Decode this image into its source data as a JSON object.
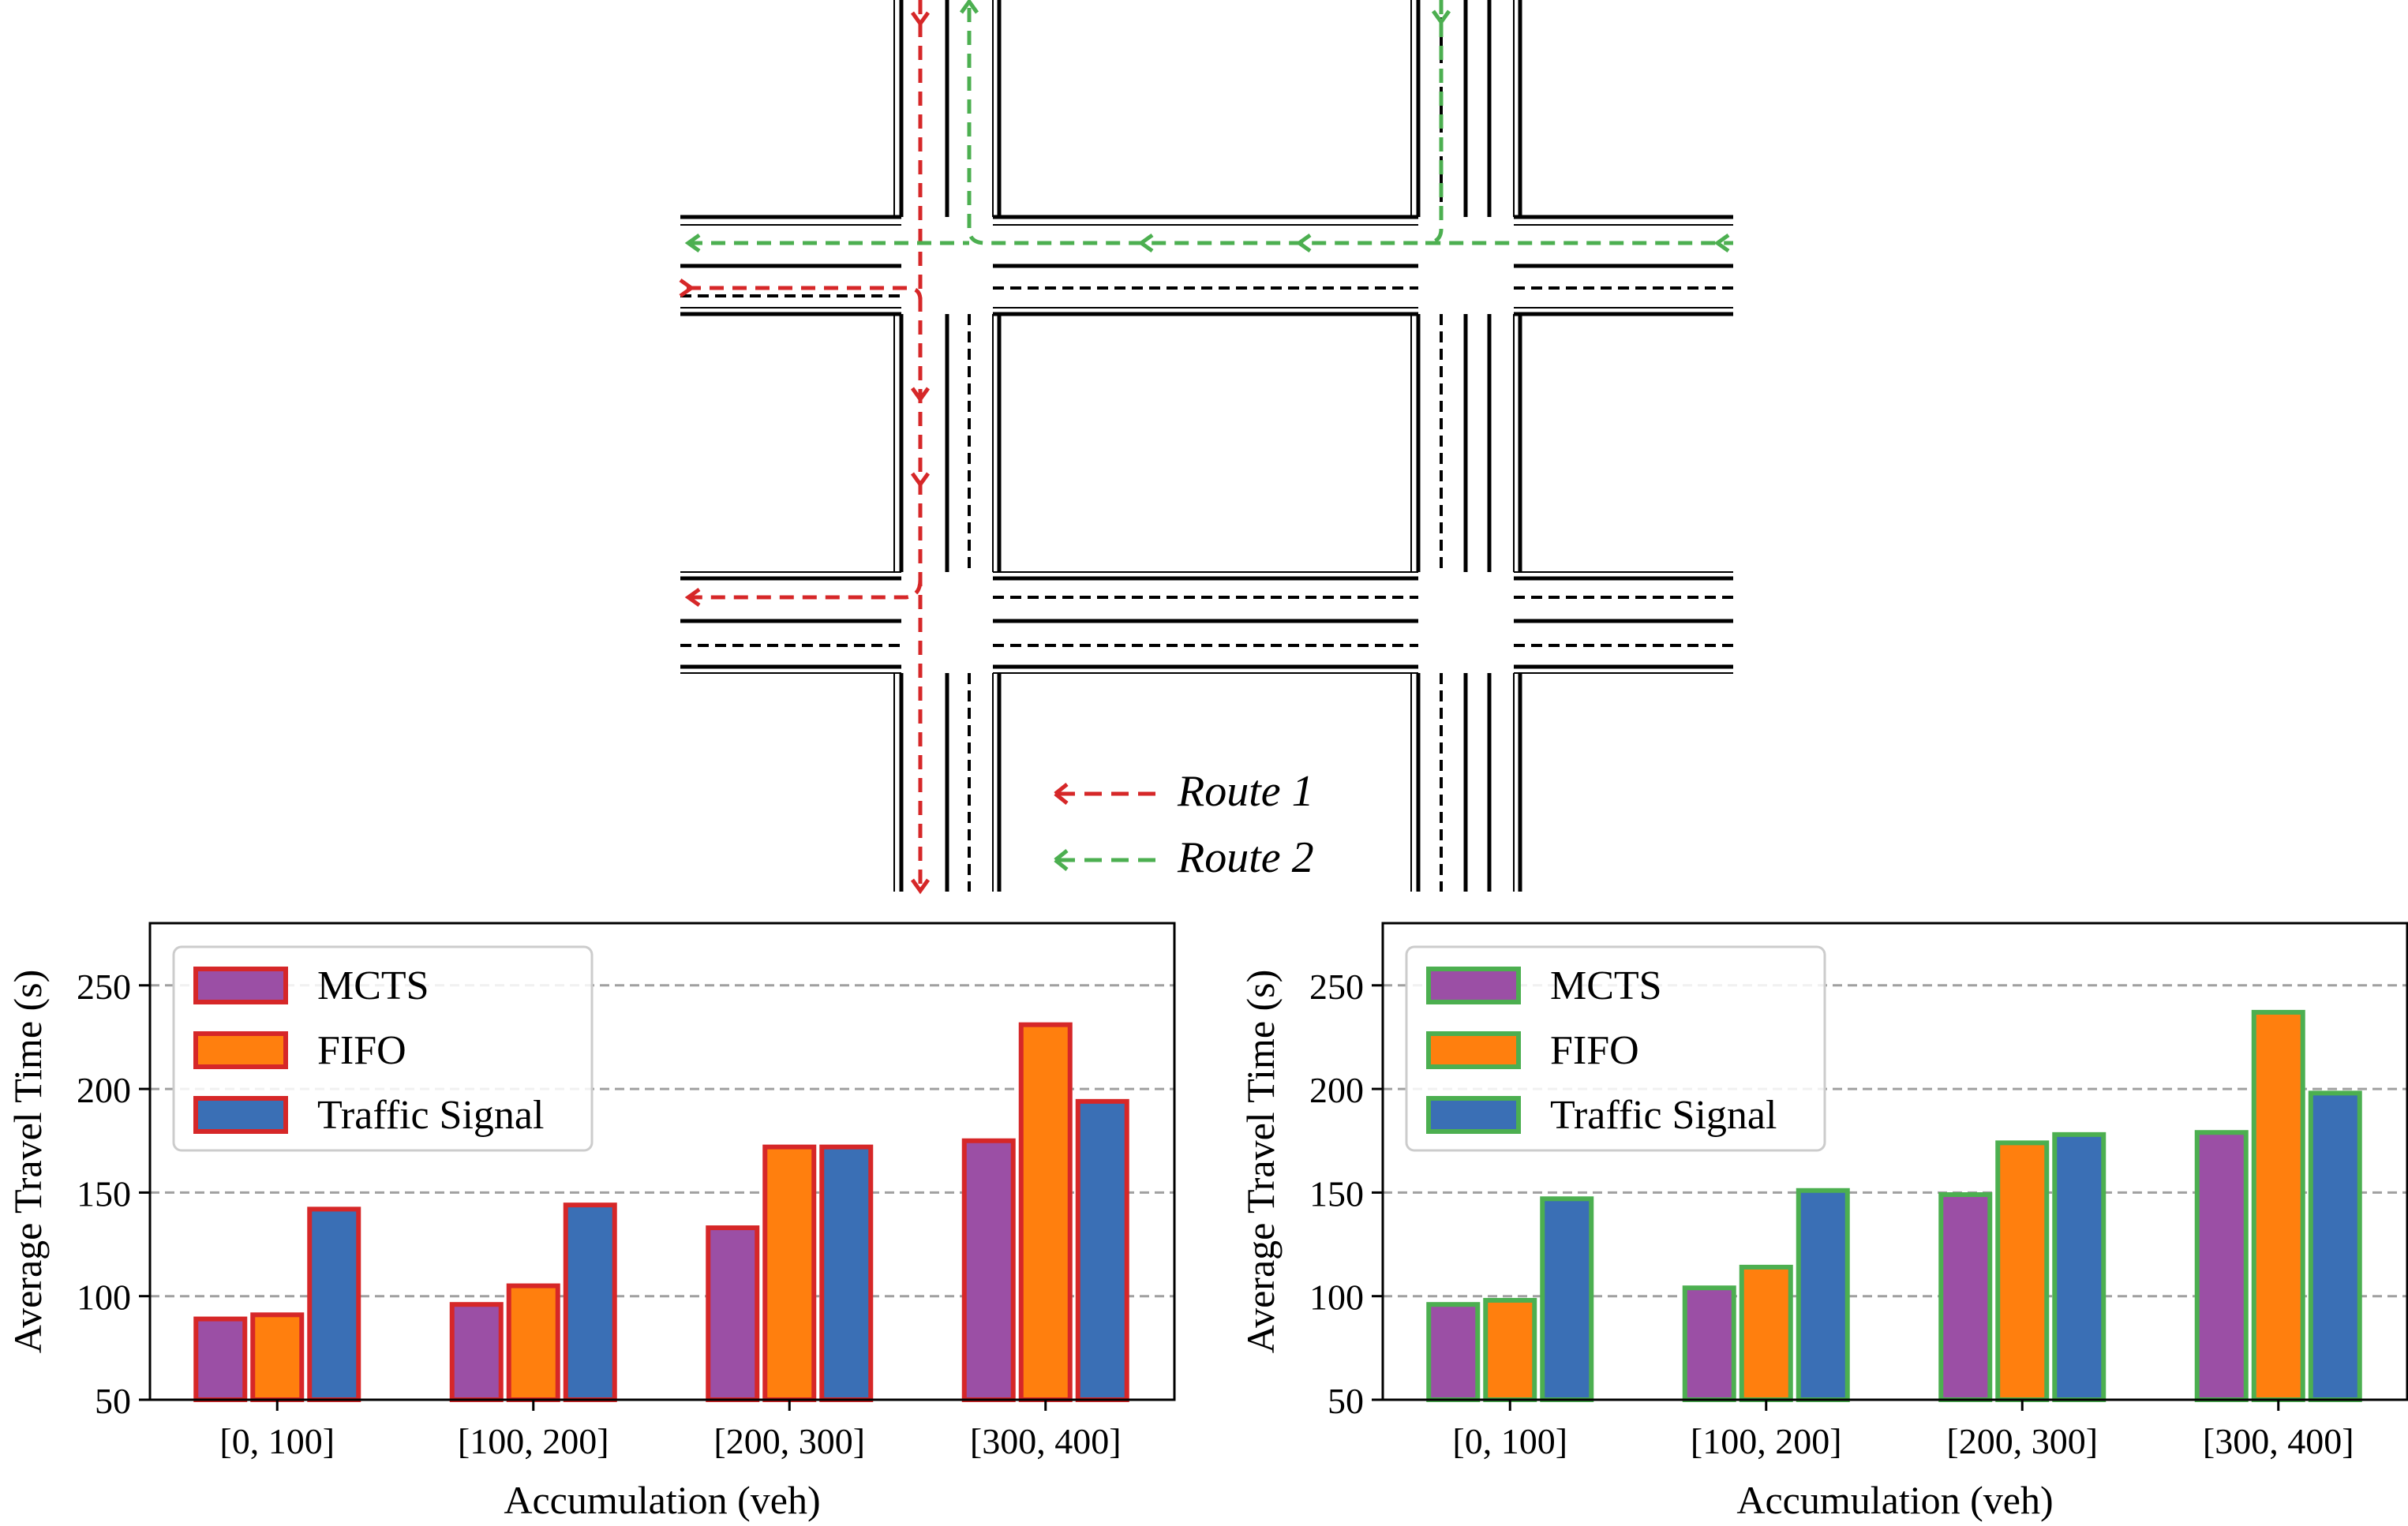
{
  "colors": {
    "route1": "#d62728",
    "route2": "#4caf50",
    "mcts": "#9b4fa5",
    "fifo": "#ff7f0e",
    "traffic_signal": "#3a6fb5",
    "grid": "#a0a0a0"
  },
  "legend_routes": [
    {
      "label": "Route 1",
      "color": "#d62728"
    },
    {
      "label": "Route 2",
      "color": "#4caf50"
    }
  ],
  "chart_data": [
    {
      "type": "bar",
      "xlabel": "Accumulation (veh)",
      "ylabel": "Average Travel Time (s)",
      "categories": [
        "[0, 100]",
        "[100, 200]",
        "[200, 300]",
        "[300, 400]"
      ],
      "ylim": [
        50,
        280
      ],
      "yticks": [
        50,
        100,
        150,
        200,
        250
      ],
      "grid": true,
      "legend_position": "top-left",
      "edge_color": "#d62728",
      "series": [
        {
          "name": "MCTS",
          "color": "#9b4fa5",
          "values": [
            89,
            96,
            133,
            175
          ]
        },
        {
          "name": "FIFO",
          "color": "#ff7f0e",
          "values": [
            91,
            105,
            172,
            231
          ]
        },
        {
          "name": "Traffic Signal",
          "color": "#3a6fb5",
          "values": [
            142,
            144,
            172,
            194
          ]
        }
      ]
    },
    {
      "type": "bar",
      "xlabel": "Accumulation (veh)",
      "ylabel": "Average Travel Time (s)",
      "categories": [
        "[0, 100]",
        "[100, 200]",
        "[200, 300]",
        "[300, 400]"
      ],
      "ylim": [
        50,
        280
      ],
      "yticks": [
        50,
        100,
        150,
        200,
        250
      ],
      "grid": true,
      "legend_position": "top-left",
      "edge_color": "#4caf50",
      "series": [
        {
          "name": "MCTS",
          "color": "#9b4fa5",
          "values": [
            96,
            104,
            149,
            179
          ]
        },
        {
          "name": "FIFO",
          "color": "#ff7f0e",
          "values": [
            98,
            114,
            174,
            237
          ]
        },
        {
          "name": "Traffic Signal",
          "color": "#3a6fb5",
          "values": [
            147,
            151,
            178,
            198
          ]
        }
      ]
    }
  ]
}
